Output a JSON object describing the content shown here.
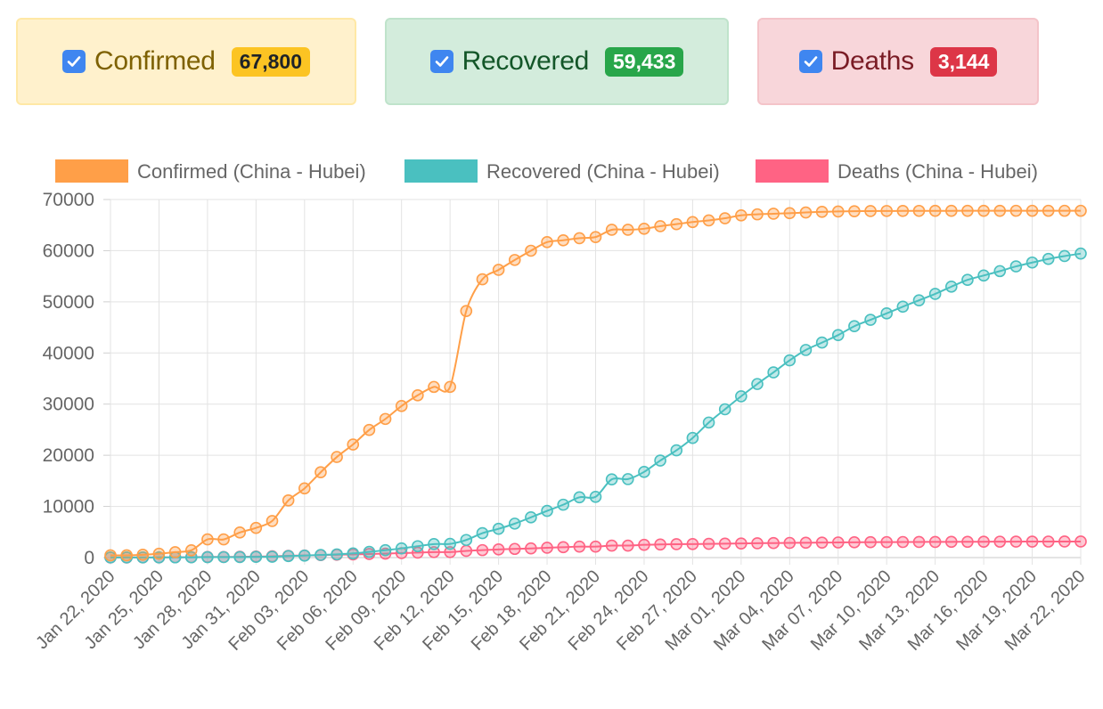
{
  "cards": {
    "confirmed": {
      "label": "Confirmed",
      "count": "67,800",
      "checked": true
    },
    "recovered": {
      "label": "Recovered",
      "count": "59,433",
      "checked": true
    },
    "deaths": {
      "label": "Deaths",
      "count": "3,144",
      "checked": true
    }
  },
  "colors": {
    "confirmed": "#ff9f48",
    "recovered": "#4ac0c0",
    "deaths": "#ff6384"
  },
  "chart_data": {
    "type": "line",
    "title": "",
    "xlabel": "",
    "ylabel": "",
    "ylim": [
      0,
      70000
    ],
    "yticks": [
      0,
      10000,
      20000,
      30000,
      40000,
      50000,
      60000,
      70000
    ],
    "grid": true,
    "legend_position": "top",
    "x": [
      "Jan 22, 2020",
      "Jan 23, 2020",
      "Jan 24, 2020",
      "Jan 25, 2020",
      "Jan 26, 2020",
      "Jan 27, 2020",
      "Jan 28, 2020",
      "Jan 29, 2020",
      "Jan 30, 2020",
      "Jan 31, 2020",
      "Feb 01, 2020",
      "Feb 02, 2020",
      "Feb 03, 2020",
      "Feb 04, 2020",
      "Feb 05, 2020",
      "Feb 06, 2020",
      "Feb 07, 2020",
      "Feb 08, 2020",
      "Feb 09, 2020",
      "Feb 10, 2020",
      "Feb 11, 2020",
      "Feb 12, 2020",
      "Feb 13, 2020",
      "Feb 14, 2020",
      "Feb 15, 2020",
      "Feb 16, 2020",
      "Feb 17, 2020",
      "Feb 18, 2020",
      "Feb 19, 2020",
      "Feb 20, 2020",
      "Feb 21, 2020",
      "Feb 22, 2020",
      "Feb 23, 2020",
      "Feb 24, 2020",
      "Feb 25, 2020",
      "Feb 26, 2020",
      "Feb 27, 2020",
      "Feb 28, 2020",
      "Feb 29, 2020",
      "Mar 01, 2020",
      "Mar 02, 2020",
      "Mar 03, 2020",
      "Mar 04, 2020",
      "Mar 05, 2020",
      "Mar 06, 2020",
      "Mar 07, 2020",
      "Mar 08, 2020",
      "Mar 09, 2020",
      "Mar 10, 2020",
      "Mar 11, 2020",
      "Mar 12, 2020",
      "Mar 13, 2020",
      "Mar 14, 2020",
      "Mar 15, 2020",
      "Mar 16, 2020",
      "Mar 17, 2020",
      "Mar 18, 2020",
      "Mar 19, 2020",
      "Mar 20, 2020",
      "Mar 21, 2020",
      "Mar 22, 2020"
    ],
    "tick_labels": [
      "Jan 22, 2020",
      "Jan 25, 2020",
      "Jan 28, 2020",
      "Jan 31, 2020",
      "Feb 03, 2020",
      "Feb 06, 2020",
      "Feb 09, 2020",
      "Feb 12, 2020",
      "Feb 15, 2020",
      "Feb 18, 2020",
      "Feb 21, 2020",
      "Feb 24, 2020",
      "Feb 27, 2020",
      "Mar 01, 2020",
      "Mar 04, 2020",
      "Mar 07, 2020",
      "Mar 10, 2020",
      "Mar 13, 2020",
      "Mar 16, 2020",
      "Mar 19, 2020",
      "Mar 22, 2020"
    ],
    "series": [
      {
        "name": "Confirmed (China - Hubei)",
        "key": "confirmed",
        "values": [
          444,
          444,
          549,
          761,
          1058,
          1423,
          3554,
          3554,
          4903,
          5806,
          7153,
          11177,
          13522,
          16678,
          19665,
          22112,
          24953,
          27100,
          29631,
          31728,
          33366,
          33366,
          48206,
          54406,
          56249,
          58182,
          59989,
          61682,
          62031,
          62442,
          62662,
          64084,
          64084,
          64287,
          64786,
          65187,
          65596,
          65914,
          66337,
          66907,
          67103,
          67217,
          67332,
          67466,
          67592,
          67666,
          67707,
          67743,
          67760,
          67773,
          67781,
          67786,
          67790,
          67794,
          67798,
          67799,
          67800,
          67800,
          67800,
          67800,
          67800
        ]
      },
      {
        "name": "Recovered (China - Hubei)",
        "key": "recovered",
        "values": [
          28,
          28,
          31,
          32,
          42,
          45,
          80,
          88,
          90,
          141,
          168,
          295,
          386,
          522,
          633,
          817,
          1115,
          1439,
          1795,
          2222,
          2639,
          2686,
          3441,
          4774,
          5623,
          6639,
          7862,
          9128,
          10337,
          11788,
          11881,
          15299,
          15343,
          16748,
          18971,
          20969,
          23383,
          26403,
          28993,
          31536,
          33934,
          36208,
          38557,
          40592,
          42033,
          43500,
          45235,
          46488,
          47743,
          49056,
          50298,
          51553,
          52960,
          54288,
          55142,
          56003,
          56927,
          57682,
          58382,
          58946,
          59433
        ]
      },
      {
        "name": "Deaths (China - Hubei)",
        "key": "deaths",
        "values": [
          17,
          17,
          24,
          40,
          52,
          76,
          125,
          125,
          162,
          204,
          249,
          350,
          414,
          479,
          549,
          618,
          699,
          780,
          871,
          974,
          1068,
          1068,
          1310,
          1457,
          1596,
          1696,
          1789,
          1921,
          2029,
          2144,
          2144,
          2346,
          2346,
          2495,
          2563,
          2615,
          2641,
          2682,
          2727,
          2761,
          2803,
          2835,
          2871,
          2902,
          2931,
          2959,
          2986,
          3008,
          3024,
          3046,
          3056,
          3062,
          3075,
          3085,
          3099,
          3111,
          3122,
          3130,
          3133,
          3139,
          3144
        ]
      }
    ]
  }
}
